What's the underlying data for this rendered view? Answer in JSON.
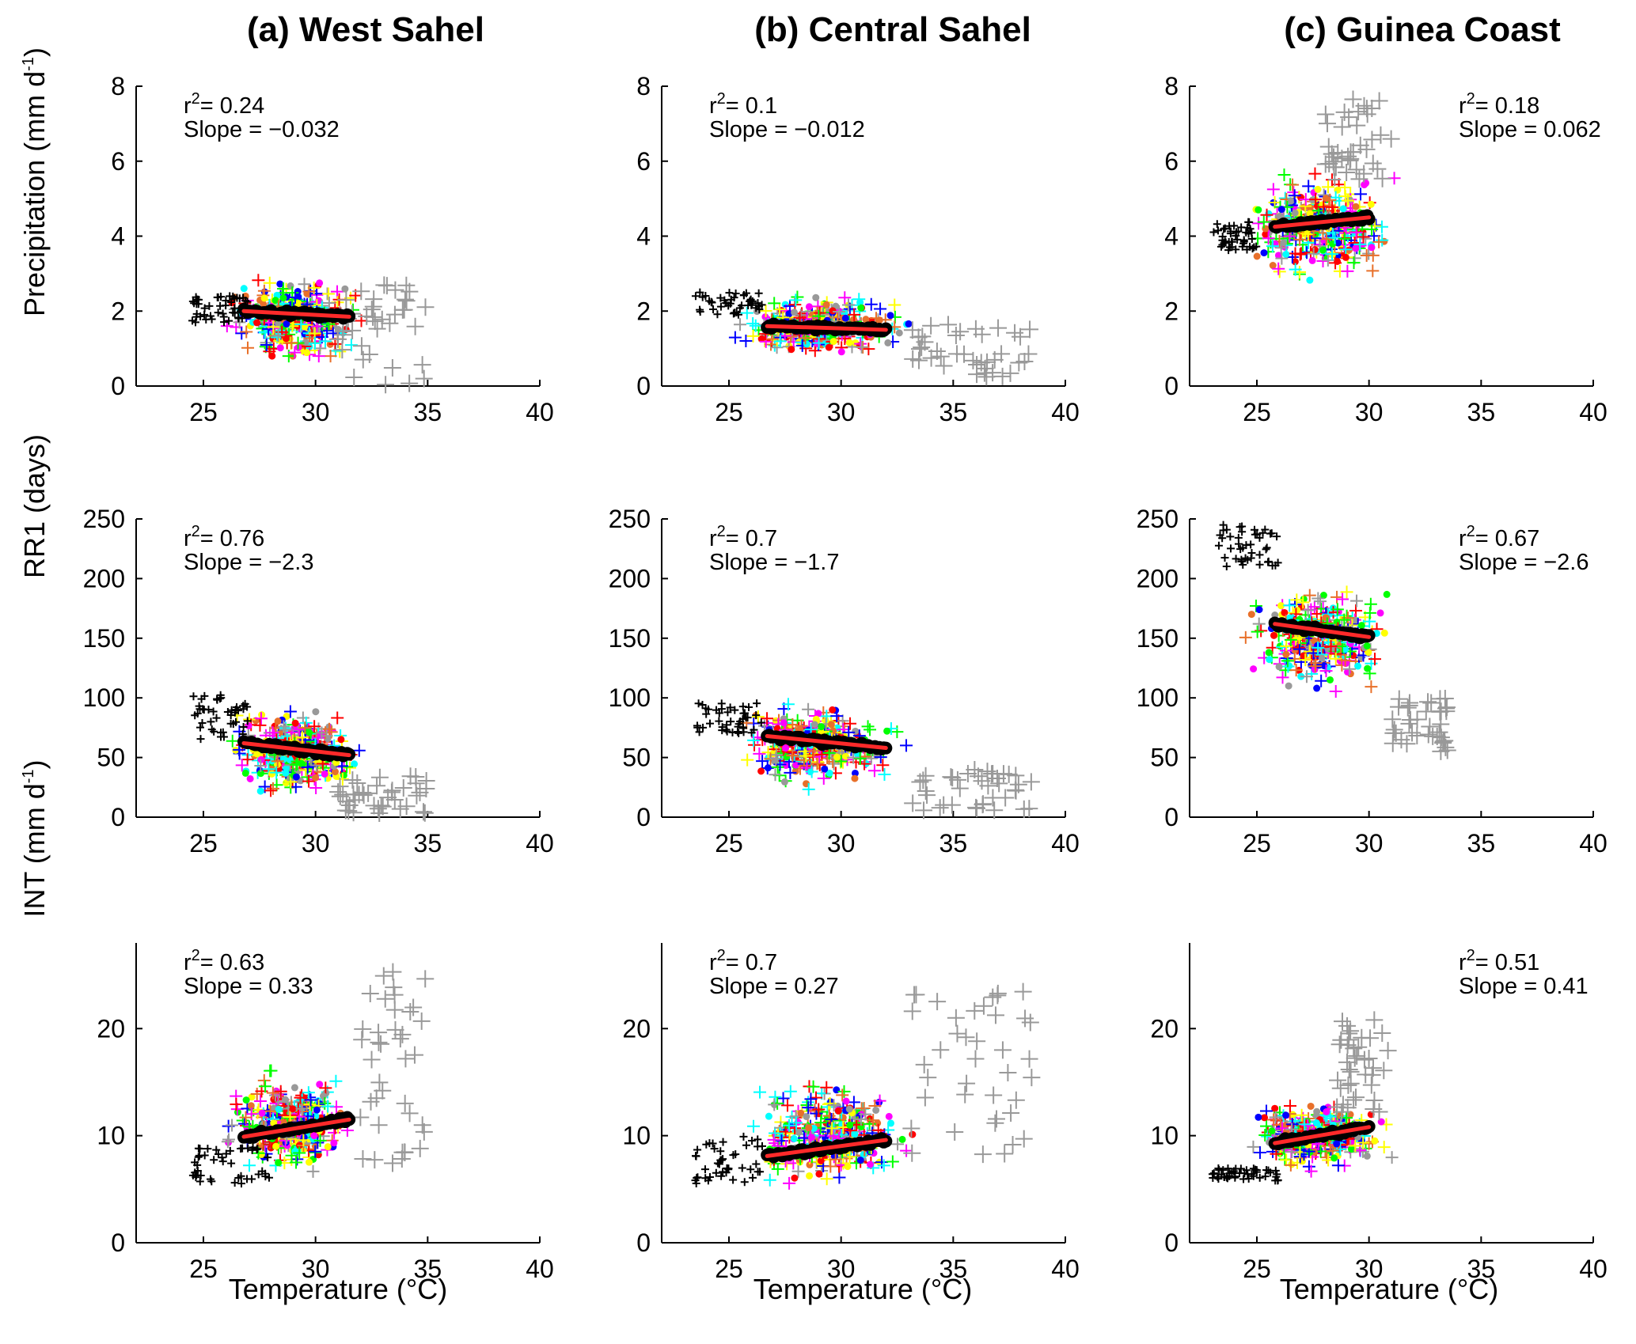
{
  "columns": [
    {
      "title": "(a) West Sahel"
    },
    {
      "title": "(b) Central Sahel"
    },
    {
      "title": "(c) Guinea Coast"
    }
  ],
  "rows": [
    {
      "ylabel_main": "Precipitation (mm d",
      "ylabel_sup": "-1",
      "ylabel_end": ")"
    },
    {
      "ylabel_main": "RR1 (days)",
      "ylabel_sup": "",
      "ylabel_end": ""
    },
    {
      "ylabel_main": "INT (mm d",
      "ylabel_sup": "-1",
      "ylabel_end": ")"
    }
  ],
  "xlabel": "Temperature (°C)",
  "chart_data": [
    {
      "type": "scatter",
      "column": "(a) West Sahel",
      "row": "Precipitation (mm d-1)",
      "r2_prefix": "r",
      "r2_value": "= 0.24",
      "slope_text": "Slope = −0.032",
      "xlim": [
        22,
        40
      ],
      "ylim": [
        0,
        8
      ],
      "xticks": [
        25,
        30,
        35,
        40
      ],
      "yticks": [
        0,
        2,
        4,
        6,
        8
      ],
      "fit": {
        "x": [
          26.8,
          31.5
        ],
        "y": [
          2.0,
          1.85
        ]
      },
      "cloud": {
        "x": [
          25.5,
          33.5
        ],
        "y": [
          0.8,
          4.2
        ],
        "center": [
          29.0,
          1.8
        ]
      },
      "black_cluster": {
        "x": [
          24.5,
          27
        ],
        "y": [
          1.7,
          2.4
        ]
      },
      "gray_tail": {
        "x": [
          31,
          35
        ],
        "y": [
          0,
          2.7
        ]
      }
    },
    {
      "type": "scatter",
      "column": "(b) Central Sahel",
      "row": "Precipitation (mm d-1)",
      "r2_prefix": "r",
      "r2_value": "= 0.1",
      "slope_text": "Slope = −0.012",
      "xlim": [
        22,
        40
      ],
      "ylim": [
        0,
        8
      ],
      "xticks": [
        25,
        30,
        35,
        40
      ],
      "yticks": [
        0,
        2,
        4,
        6,
        8
      ],
      "fit": {
        "x": [
          26.7,
          32.0
        ],
        "y": [
          1.6,
          1.5
        ]
      },
      "cloud": {
        "x": [
          24.5,
          35
        ],
        "y": [
          0.7,
          3.2
        ],
        "center": [
          29.0,
          1.6
        ]
      },
      "black_cluster": {
        "x": [
          23.5,
          26.5
        ],
        "y": [
          1.9,
          2.5
        ]
      },
      "gray_tail": {
        "x": [
          33,
          38.5
        ],
        "y": [
          0.2,
          1.7
        ]
      }
    },
    {
      "type": "scatter",
      "column": "(c) Guinea Coast",
      "row": "Precipitation (mm d-1)",
      "r2_prefix": "r",
      "r2_value": "= 0.18",
      "slope_text": "Slope = 0.062",
      "xlim": [
        22,
        40
      ],
      "ylim": [
        0,
        8
      ],
      "xticks": [
        25,
        30,
        35,
        40
      ],
      "yticks": [
        0,
        2,
        4,
        6,
        8
      ],
      "fit": {
        "x": [
          25.8,
          30.0
        ],
        "y": [
          4.25,
          4.5
        ]
      },
      "cloud": {
        "x": [
          24.5,
          33
        ],
        "y": [
          2.0,
          6.5
        ],
        "center": [
          27.8,
          4.3
        ]
      },
      "black_cluster": {
        "x": [
          23,
          25
        ],
        "y": [
          3.6,
          4.4
        ]
      },
      "gray_tail": {
        "x": [
          28,
          31
        ],
        "y": [
          5.5,
          7.7
        ]
      }
    },
    {
      "type": "scatter",
      "column": "(a) West Sahel",
      "row": "RR1 (days)",
      "r2_prefix": "r",
      "r2_value": "= 0.76",
      "slope_text": "Slope = −2.3",
      "xlim": [
        22,
        40
      ],
      "ylim": [
        0,
        250
      ],
      "xticks": [
        25,
        30,
        35,
        40
      ],
      "yticks": [
        0,
        50,
        100,
        150,
        200,
        250
      ],
      "fit": {
        "x": [
          26.8,
          31.5
        ],
        "y": [
          62,
          52
        ]
      },
      "cloud": {
        "x": [
          25.5,
          33.5
        ],
        "y": [
          10,
          118
        ],
        "center": [
          29.0,
          55
        ]
      },
      "black_cluster": {
        "x": [
          24.5,
          27
        ],
        "y": [
          65,
          105
        ]
      },
      "gray_tail": {
        "x": [
          31,
          35
        ],
        "y": [
          3,
          35
        ]
      }
    },
    {
      "type": "scatter",
      "column": "(b) Central Sahel",
      "row": "RR1 (days)",
      "r2_prefix": "r",
      "r2_value": "= 0.7",
      "slope_text": "Slope = −1.7",
      "xlim": [
        22,
        40
      ],
      "ylim": [
        0,
        250
      ],
      "xticks": [
        25,
        30,
        35,
        40
      ],
      "yticks": [
        0,
        50,
        100,
        150,
        200,
        250
      ],
      "fit": {
        "x": [
          26.7,
          32.0
        ],
        "y": [
          68,
          58
        ]
      },
      "cloud": {
        "x": [
          24.5,
          34.5
        ],
        "y": [
          15,
          120
        ],
        "center": [
          29.0,
          60
        ]
      },
      "black_cluster": {
        "x": [
          23.5,
          26.5
        ],
        "y": [
          70,
          97
        ]
      },
      "gray_tail": {
        "x": [
          33,
          38.5
        ],
        "y": [
          5,
          40
        ]
      }
    },
    {
      "type": "scatter",
      "column": "(c) Guinea Coast",
      "row": "RR1 (days)",
      "r2_prefix": "r",
      "r2_value": "= 0.67",
      "slope_text": "Slope = −2.6",
      "xlim": [
        22,
        40
      ],
      "ylim": [
        0,
        250
      ],
      "xticks": [
        25,
        30,
        35,
        40
      ],
      "yticks": [
        0,
        50,
        100,
        150,
        200,
        250
      ],
      "fit": {
        "x": [
          25.8,
          30.0
        ],
        "y": [
          162,
          151
        ]
      },
      "cloud": {
        "x": [
          24.5,
          33
        ],
        "y": [
          90,
          215
        ],
        "center": [
          27.8,
          150
        ]
      },
      "black_cluster": {
        "x": [
          23,
          26
        ],
        "y": [
          210,
          245
        ]
      },
      "gray_tail": {
        "x": [
          31,
          33.5
        ],
        "y": [
          55,
          100
        ]
      }
    },
    {
      "type": "scatter",
      "column": "(a) West Sahel",
      "row": "INT (mm d-1)",
      "r2_prefix": "r",
      "r2_value": "= 0.63",
      "slope_text": "Slope = 0.33",
      "xlim": [
        22,
        40
      ],
      "ylim": [
        0,
        28
      ],
      "xticks": [
        25,
        30,
        35,
        40
      ],
      "yticks": [
        0,
        10,
        20
      ],
      "fit": {
        "x": [
          26.8,
          31.5
        ],
        "y": [
          9.9,
          11.5
        ]
      },
      "cloud": {
        "x": [
          25.5,
          33.5
        ],
        "y": [
          6,
          20
        ],
        "center": [
          29.0,
          11
        ]
      },
      "black_cluster": {
        "x": [
          24.5,
          28
        ],
        "y": [
          5.5,
          9
        ]
      },
      "gray_tail": {
        "x": [
          32,
          35
        ],
        "y": [
          6,
          26
        ]
      }
    },
    {
      "type": "scatter",
      "column": "(b) Central Sahel",
      "row": "INT (mm d-1)",
      "r2_prefix": "r",
      "r2_value": "= 0.7",
      "slope_text": "Slope = 0.27",
      "xlim": [
        22,
        40
      ],
      "ylim": [
        0,
        28
      ],
      "xticks": [
        25,
        30,
        35,
        40
      ],
      "yticks": [
        0,
        10,
        20
      ],
      "fit": {
        "x": [
          26.7,
          32.0
        ],
        "y": [
          8.1,
          9.6
        ]
      },
      "cloud": {
        "x": [
          24.5,
          34.5
        ],
        "y": [
          4.5,
          19
        ],
        "center": [
          29.5,
          10
        ]
      },
      "black_cluster": {
        "x": [
          23.5,
          26.5
        ],
        "y": [
          5.5,
          10
        ]
      },
      "gray_tail": {
        "x": [
          33,
          38.5
        ],
        "y": [
          8,
          23.5
        ]
      }
    },
    {
      "type": "scatter",
      "column": "(c) Guinea Coast",
      "row": "INT (mm d-1)",
      "r2_prefix": "r",
      "r2_value": "= 0.51",
      "slope_text": "Slope = 0.41",
      "xlim": [
        22,
        40
      ],
      "ylim": [
        0,
        28
      ],
      "xticks": [
        25,
        30,
        35,
        40
      ],
      "yticks": [
        0,
        10,
        20
      ],
      "fit": {
        "x": [
          25.8,
          30.0
        ],
        "y": [
          9.3,
          10.8
        ]
      },
      "cloud": {
        "x": [
          24.5,
          33
        ],
        "y": [
          6.5,
          16
        ],
        "center": [
          27.8,
          10
        ]
      },
      "black_cluster": {
        "x": [
          23,
          26
        ],
        "y": [
          5.8,
          7
        ]
      },
      "gray_tail": {
        "x": [
          28.5,
          31
        ],
        "y": [
          12,
          21.5
        ]
      }
    }
  ],
  "model_colors": [
    "#0000ff",
    "#ff0000",
    "#00ff00",
    "#ffff00",
    "#00ffff",
    "#ff00ff",
    "#999999",
    "#e8702a"
  ],
  "colors": {
    "fit_line": "#ff2a2a",
    "observations": "#000000"
  }
}
